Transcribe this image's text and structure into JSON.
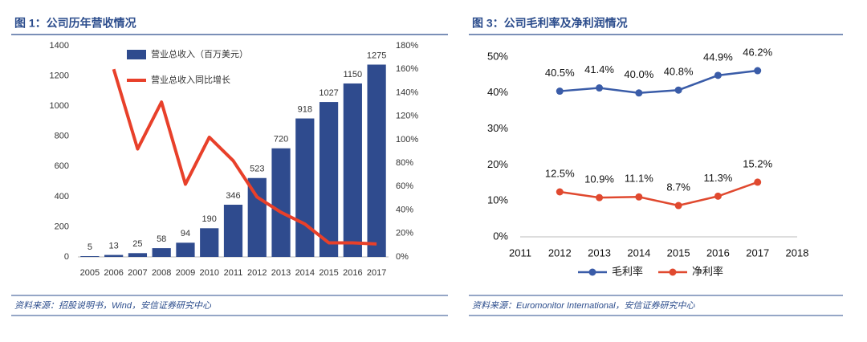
{
  "chart_data": [
    {
      "type": "bar",
      "title": "图 1：公司历年营收情况",
      "source": "资料来源：招股说明书，Wind，安信证券研究中心",
      "categories": [
        "2005",
        "2006",
        "2007",
        "2008",
        "2009",
        "2010",
        "2011",
        "2012",
        "2013",
        "2014",
        "2015",
        "2016",
        "2017"
      ],
      "series": [
        {
          "name": "营业总收入（百万美元）",
          "type": "bar",
          "color": "#2f4b8e",
          "values": [
            5,
            13,
            25,
            58,
            94,
            190,
            346,
            523,
            720,
            918,
            1027,
            1150,
            1275
          ]
        },
        {
          "name": "营业总收入同比增长",
          "type": "line",
          "axis": "y2",
          "color": "#e8402a",
          "values": [
            null,
            160,
            92,
            132,
            62,
            102,
            82,
            51,
            38,
            28,
            12,
            12,
            11
          ]
        }
      ],
      "ylim": [
        0,
        1400
      ],
      "yticks": [
        0,
        200,
        400,
        600,
        800,
        1000,
        1200,
        1400
      ],
      "y2lim": [
        0,
        180
      ],
      "y2ticks": [
        {
          "value": 0,
          "label": "0%"
        },
        {
          "value": 20,
          "label": "20%"
        },
        {
          "value": 40,
          "label": "40%"
        },
        {
          "value": 60,
          "label": "60%"
        },
        {
          "value": 80,
          "label": "80%"
        },
        {
          "value": 100,
          "label": "100%"
        },
        {
          "value": 120,
          "label": "120%"
        },
        {
          "value": 140,
          "label": "140%"
        },
        {
          "value": 160,
          "label": "160%"
        },
        {
          "value": 180,
          "label": "180%"
        }
      ],
      "legend": "top-left",
      "grid": false
    },
    {
      "type": "line",
      "title": "图 3：公司毛利率及净利润情况",
      "source": "资料来源：Euromonitor International，安信证券研究中心",
      "x": [
        2012,
        2013,
        2014,
        2015,
        2016,
        2017
      ],
      "series": [
        {
          "name": "毛利率",
          "color": "#3a5ca8",
          "values": [
            40.5,
            41.4,
            40.0,
            40.8,
            44.9,
            46.2
          ],
          "value_labels": [
            "40.5%",
            "41.4%",
            "40.0%",
            "40.8%",
            "44.9%",
            "46.2%"
          ]
        },
        {
          "name": "净利率",
          "color": "#e0492f",
          "values": [
            12.5,
            10.9,
            11.1,
            8.7,
            11.3,
            15.2
          ],
          "value_labels": [
            "12.5%",
            "10.9%",
            "11.1%",
            "8.7%",
            "11.3%",
            "15.2%"
          ]
        }
      ],
      "xlim": [
        2011,
        2018
      ],
      "xticks": [
        2011,
        2012,
        2013,
        2014,
        2015,
        2016,
        2017,
        2018
      ],
      "ylim": [
        0,
        50
      ],
      "yticks": [
        {
          "value": 0,
          "label": "0%"
        },
        {
          "value": 10,
          "label": "10%"
        },
        {
          "value": 20,
          "label": "20%"
        },
        {
          "value": 30,
          "label": "30%"
        },
        {
          "value": 40,
          "label": "40%"
        },
        {
          "value": 50,
          "label": "50%"
        }
      ],
      "legend": "bottom",
      "grid": false
    }
  ]
}
